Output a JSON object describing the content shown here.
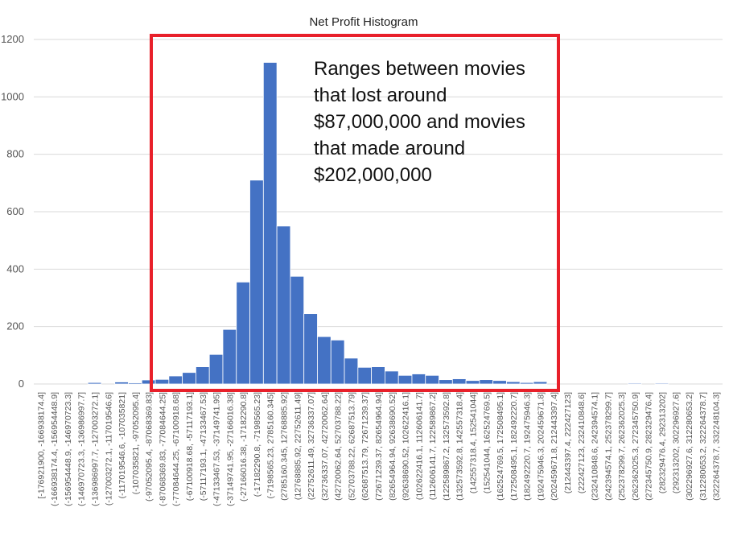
{
  "chart_data": {
    "type": "bar",
    "title": "Net Profit Histogram",
    "ylim": [
      0,
      1200
    ],
    "yticks": [
      0,
      200,
      400,
      600,
      800,
      1000,
      1200
    ],
    "grid": true,
    "categories": [
      "[-176921900, -166938174.4]",
      "(-166938174.4, -156954448.9]",
      "(-156954448.9, -146970723.3]",
      "(-146970723.3, -136986997.7]",
      "(-136986997.7, -127003272.1]",
      "(-127003272.1, -117019546.6]",
      "(-117019546.6, -107035821]",
      "(-107035821, -97052095.4]",
      "(-97052095.4, -87068369.83]",
      "(-87068369.83, -77084644.25]",
      "(-77084644.25, -67100918.68]",
      "(-67100918.68, -57117193.1]",
      "(-57117193.1, -47133467.53]",
      "(-47133467.53, -37149741.95]",
      "(-37149741.95, -27166016.38]",
      "(-27166016.38, -17182290.8]",
      "(-17182290.8, -7198565.23]",
      "(-7198565.23, 2785160.345]",
      "(2785160.345, 12768885.92]",
      "(12768885.92, 22752611.49]",
      "(22752611.49, 32736337.07]",
      "(32736337.07, 42720062.64]",
      "(42720062.64, 52703788.22]",
      "(52703788.22, 62687513.79]",
      "(62687513.79, 72671239.37]",
      "(72671239.37, 82654964.94]",
      "(82654964.94, 92638690.52]",
      "(92638690.52, 102622416.1]",
      "(102622416.1, 112606141.7]",
      "(112606141.7, 122589867.2]",
      "(122589867.2, 132573592.8]",
      "(132573592.8, 142557318.4]",
      "(142557318.4, 152541044]",
      "(152541044, 162524769.5]",
      "(162524769.5, 172508495.1]",
      "(172508495.1, 182492220.7]",
      "(182492220.7, 192475946.3]",
      "(192475946.3, 202459671.8]",
      "(202459671.8, 212443397.4]",
      "(212443397.4, 222427123]",
      "(222427123, 232410848.6]",
      "(232410848.6, 242394574.1]",
      "(242394574.1, 252378299.7]",
      "(252378299.7, 262362025.3]",
      "(262362025.3, 272345750.9]",
      "(272345750.9, 282329476.4]",
      "(282329476.4, 292313202]",
      "(292313202, 302296927.6]",
      "(302296927.6, 312280653.2]",
      "(312280653.2, 322264378.7]",
      "(322264378.7, 332248104.3]"
    ],
    "values": [
      0,
      0,
      0,
      0,
      5,
      0,
      7,
      4,
      14,
      16,
      28,
      40,
      60,
      103,
      190,
      355,
      710,
      1120,
      550,
      375,
      245,
      165,
      153,
      90,
      58,
      60,
      45,
      30,
      35,
      30,
      15,
      18,
      12,
      15,
      12,
      8,
      5,
      8,
      0,
      0,
      0,
      0,
      0,
      0,
      3,
      0,
      3,
      0,
      0,
      0,
      0
    ],
    "annotation": {
      "lines": [
        "Ranges between movies",
        "that lost around",
        "$87,000,000 and movies",
        "that made around",
        "$202,000,000"
      ]
    },
    "colors": {
      "bar": "#4472c4",
      "highlight_box": "#e8202a",
      "grid": "#d9d9d9"
    }
  }
}
